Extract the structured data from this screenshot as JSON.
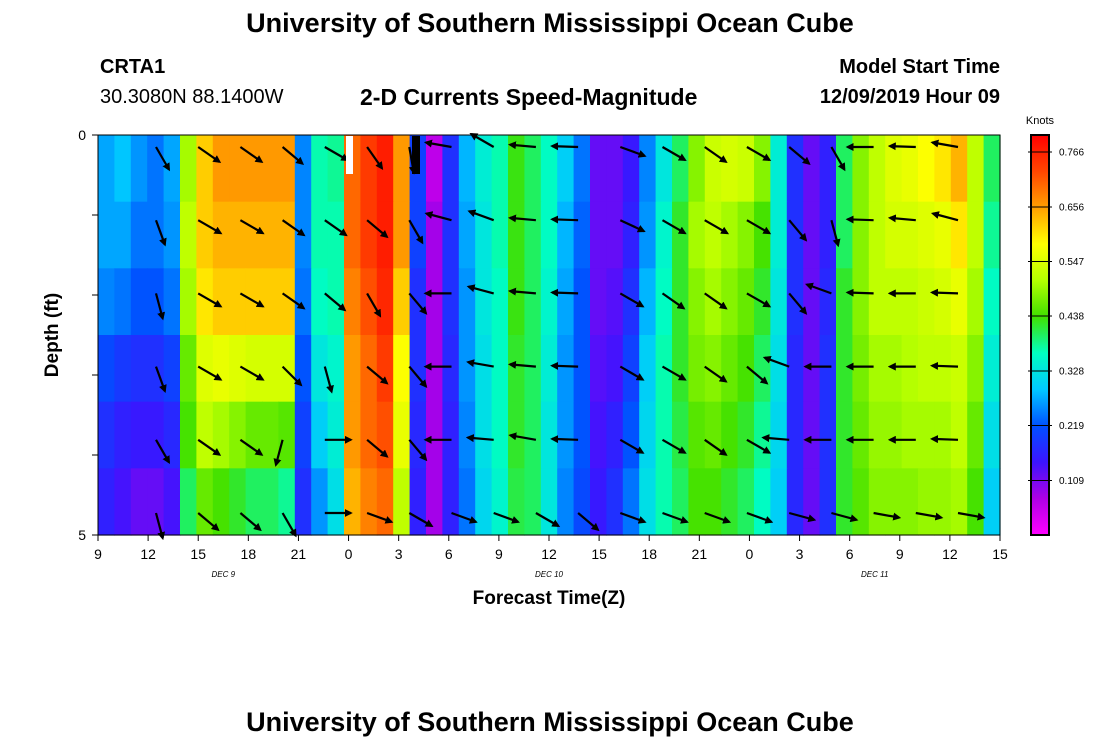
{
  "header": {
    "title_top": "University of Southern Mississippi Ocean Cube",
    "title_bottom": "University of Southern Mississippi Ocean Cube",
    "station_id": "CRTA1",
    "station_coords": "30.3080N 88.1400W",
    "model_start_label": "Model Start Time",
    "model_start_value": "12/09/2019 Hour 09"
  },
  "colors": {
    "scale": [
      "#ff00ff",
      "#b000e6",
      "#3c14ff",
      "#0050ff",
      "#00c8ff",
      "#00ffc0",
      "#40e000",
      "#b4ff00",
      "#ffff00",
      "#ffa000",
      "#ff4600",
      "#ff0000"
    ],
    "arrow": "#000000"
  },
  "chart_data": {
    "type": "heatmap",
    "title": "2-D Currents Speed-Magnitude",
    "xlabel": "Forecast Time(Z)",
    "ylabel": "Depth (ft)",
    "x_tick_labels": [
      "9",
      "12",
      "15",
      "18",
      "21",
      "0",
      "3",
      "6",
      "9",
      "12",
      "15",
      "18",
      "21",
      "0",
      "3",
      "6",
      "9",
      "12",
      "15"
    ],
    "date_labels": [
      "DEC 9",
      "DEC 10",
      "DEC 11"
    ],
    "y_tick_labels": [
      "0",
      "5"
    ],
    "ylim": [
      0,
      5
    ],
    "depth_levels": [
      0,
      1,
      2,
      3,
      4,
      5
    ],
    "colorbar": {
      "unit": "Knots",
      "tick_labels": [
        "0.766",
        "0.656",
        "0.547",
        "0.438",
        "0.328",
        "0.219",
        "0.109"
      ],
      "min": 0,
      "max": 0.8
    },
    "speed_knots": [
      [
        0.27,
        0.29,
        0.26,
        0.24,
        0.27,
        0.5,
        0.62,
        0.66,
        0.66,
        0.66,
        0.66,
        0.66,
        0.25,
        0.37,
        0.38,
        0.7,
        0.74,
        0.77,
        0.66,
        0.2,
        0.06,
        0.18,
        0.28,
        0.34,
        0.37,
        0.43,
        0.4,
        0.36,
        0.3,
        0.24,
        0.12,
        0.12,
        0.15,
        0.25,
        0.33,
        0.4,
        0.48,
        0.53,
        0.54,
        0.53,
        0.48,
        0.34,
        0.18,
        0.12,
        0.16,
        0.4,
        0.48,
        0.52,
        0.55,
        0.56,
        0.58,
        0.6,
        0.64,
        0.52,
        0.4
      ],
      [
        0.27,
        0.27,
        0.24,
        0.24,
        0.26,
        0.52,
        0.62,
        0.64,
        0.64,
        0.64,
        0.64,
        0.64,
        0.25,
        0.37,
        0.37,
        0.7,
        0.74,
        0.77,
        0.66,
        0.2,
        0.08,
        0.18,
        0.27,
        0.33,
        0.37,
        0.43,
        0.4,
        0.36,
        0.28,
        0.23,
        0.12,
        0.12,
        0.16,
        0.26,
        0.35,
        0.42,
        0.5,
        0.52,
        0.5,
        0.48,
        0.44,
        0.34,
        0.18,
        0.12,
        0.16,
        0.4,
        0.48,
        0.52,
        0.54,
        0.54,
        0.55,
        0.56,
        0.6,
        0.52,
        0.38
      ],
      [
        0.25,
        0.24,
        0.22,
        0.22,
        0.24,
        0.5,
        0.6,
        0.62,
        0.62,
        0.62,
        0.62,
        0.62,
        0.24,
        0.36,
        0.37,
        0.68,
        0.72,
        0.76,
        0.62,
        0.18,
        0.08,
        0.18,
        0.26,
        0.33,
        0.36,
        0.43,
        0.4,
        0.35,
        0.27,
        0.22,
        0.12,
        0.13,
        0.18,
        0.28,
        0.36,
        0.42,
        0.48,
        0.5,
        0.48,
        0.46,
        0.42,
        0.33,
        0.18,
        0.12,
        0.17,
        0.42,
        0.48,
        0.52,
        0.52,
        0.52,
        0.53,
        0.54,
        0.56,
        0.5,
        0.36
      ],
      [
        0.21,
        0.19,
        0.18,
        0.18,
        0.2,
        0.46,
        0.55,
        0.56,
        0.55,
        0.54,
        0.54,
        0.54,
        0.22,
        0.33,
        0.35,
        0.66,
        0.7,
        0.74,
        0.58,
        0.18,
        0.08,
        0.17,
        0.26,
        0.32,
        0.36,
        0.42,
        0.4,
        0.34,
        0.26,
        0.22,
        0.13,
        0.14,
        0.2,
        0.3,
        0.37,
        0.42,
        0.47,
        0.48,
        0.46,
        0.44,
        0.4,
        0.32,
        0.17,
        0.12,
        0.18,
        0.42,
        0.47,
        0.5,
        0.5,
        0.51,
        0.52,
        0.52,
        0.53,
        0.48,
        0.34
      ],
      [
        0.18,
        0.16,
        0.15,
        0.15,
        0.17,
        0.44,
        0.52,
        0.5,
        0.48,
        0.46,
        0.46,
        0.45,
        0.2,
        0.3,
        0.34,
        0.66,
        0.7,
        0.72,
        0.56,
        0.17,
        0.08,
        0.16,
        0.25,
        0.32,
        0.36,
        0.42,
        0.4,
        0.33,
        0.26,
        0.22,
        0.14,
        0.16,
        0.22,
        0.31,
        0.37,
        0.41,
        0.45,
        0.46,
        0.44,
        0.42,
        0.38,
        0.31,
        0.17,
        0.12,
        0.18,
        0.42,
        0.46,
        0.49,
        0.49,
        0.5,
        0.5,
        0.5,
        0.52,
        0.46,
        0.32
      ],
      [
        0.16,
        0.14,
        0.12,
        0.12,
        0.14,
        0.4,
        0.46,
        0.44,
        0.42,
        0.4,
        0.4,
        0.38,
        0.18,
        0.26,
        0.32,
        0.64,
        0.68,
        0.7,
        0.52,
        0.16,
        0.08,
        0.16,
        0.24,
        0.31,
        0.35,
        0.41,
        0.4,
        0.33,
        0.25,
        0.21,
        0.15,
        0.18,
        0.24,
        0.32,
        0.37,
        0.4,
        0.44,
        0.44,
        0.42,
        0.4,
        0.36,
        0.3,
        0.17,
        0.12,
        0.18,
        0.42,
        0.45,
        0.48,
        0.48,
        0.48,
        0.49,
        0.49,
        0.5,
        0.44,
        0.3
      ]
    ],
    "arrows_deg": [
      [
        -60,
        -35,
        -35,
        -40,
        -30,
        -55,
        -80,
        170,
        150,
        175,
        178,
        -20,
        -30,
        -35,
        -30,
        -40,
        -60,
        180,
        178,
        170
      ],
      [
        -70,
        -30,
        -30,
        -35,
        -35,
        -40,
        -60,
        165,
        160,
        175,
        178,
        -25,
        -30,
        -30,
        -30,
        -50,
        -75,
        178,
        175,
        165
      ],
      [
        -75,
        -30,
        -30,
        -35,
        -40,
        -60,
        -50,
        180,
        165,
        175,
        178,
        -30,
        -35,
        -35,
        -30,
        -50,
        160,
        178,
        180,
        178
      ],
      [
        -70,
        -30,
        -30,
        -45,
        -75,
        -40,
        -50,
        180,
        170,
        175,
        178,
        -30,
        -30,
        -35,
        -40,
        160,
        180,
        180,
        180,
        178
      ],
      [
        -60,
        -35,
        -35,
        -105,
        0,
        -40,
        -50,
        180,
        175,
        170,
        178,
        -30,
        -30,
        -35,
        -30,
        175,
        180,
        180,
        180,
        178
      ],
      [
        -75,
        -40,
        -40,
        -60,
        0,
        -20,
        -30,
        -20,
        -20,
        -30,
        -40,
        -20,
        -20,
        -20,
        -20,
        -15,
        -15,
        -10,
        -10,
        -10
      ]
    ]
  }
}
